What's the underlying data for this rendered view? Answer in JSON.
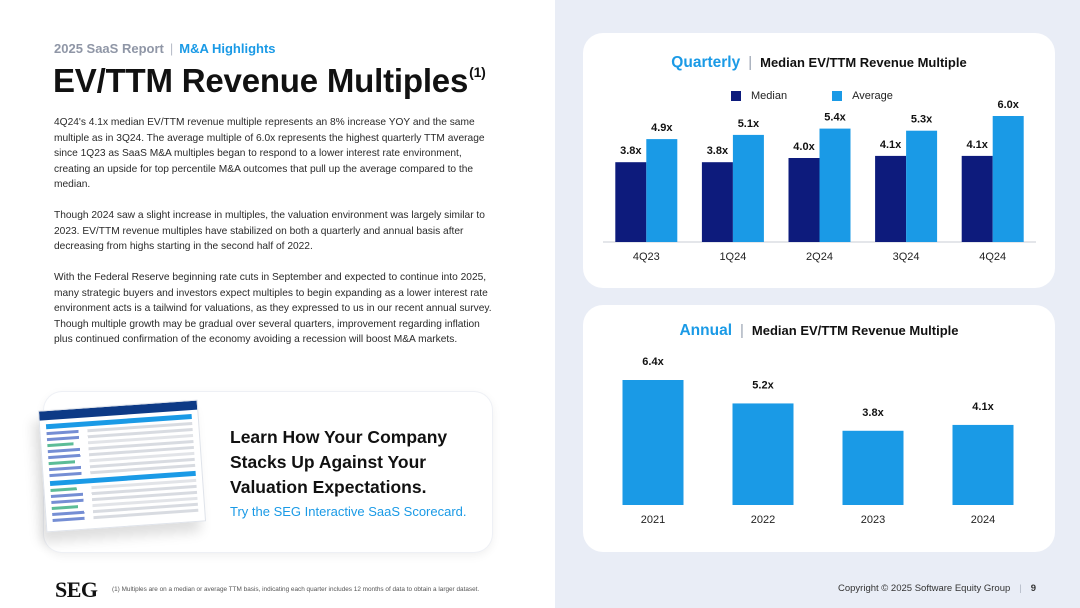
{
  "header": {
    "report": "2025 SaaS Report",
    "section": "M&A Highlights",
    "title": "EV/TTM Revenue Multiples",
    "title_note": "(1)"
  },
  "body": {
    "paragraphs": [
      "4Q24's 4.1x median EV/TTM revenue multiple represents an 8% increase YOY and the same multiple as in 3Q24. The average multiple of 6.0x represents the highest quarterly TTM average since 1Q23 as SaaS M&A multiples began to respond to a lower interest rate environment, creating an upside for top percentile M&A outcomes that pull up the average compared to the median.",
      "Though 2024 saw a slight increase in multiples, the valuation environment was largely similar to 2023. EV/TTM revenue multiples have stabilized on both a quarterly and annual basis after decreasing from highs starting in the second half of 2022.",
      "With the Federal Reserve beginning rate cuts in September and expected to continue into 2025, many strategic buyers and investors expect multiples to begin expanding as a lower interest rate environment acts is a tailwind for valuations, as they expressed to us in our recent annual survey. Though multiple growth may be gradual over several quarters, improvement regarding inflation plus continued confirmation of the economy avoiding a recession will boost M&A markets."
    ]
  },
  "cta": {
    "heading": "Learn How Your Company Stacks Up Against Your Valuation Expectations.",
    "link": "Try the SEG Interactive SaaS Scorecard."
  },
  "footer": {
    "logo": "SEG",
    "footnote": "(1) Multiples are on a median or average TTM basis, indicating each quarter includes 12 months of data to obtain a larger dataset.",
    "copyright": "Copyright © 2025 Software Equity Group",
    "page": "9"
  },
  "colors": {
    "median": "#0d1b7c",
    "average": "#1a9ae6",
    "annual": "#1a9ae6",
    "accent": "#1a9ae6"
  },
  "chart_data": [
    {
      "type": "bar",
      "title_prefix": "Quarterly",
      "title": "Median EV/TTM Revenue Multiple",
      "categories": [
        "4Q23",
        "1Q24",
        "2Q24",
        "3Q24",
        "4Q24"
      ],
      "series": [
        {
          "name": "Median",
          "values": [
            3.8,
            3.8,
            4.0,
            4.1,
            4.1
          ],
          "labels": [
            "3.8x",
            "3.8x",
            "4.0x",
            "4.1x",
            "4.1x"
          ]
        },
        {
          "name": "Average",
          "values": [
            4.9,
            5.1,
            5.4,
            5.3,
            6.0
          ],
          "labels": [
            "4.9x",
            "5.1x",
            "5.4x",
            "5.3x",
            "6.0x"
          ]
        }
      ],
      "ylim": [
        0,
        6.0
      ],
      "grid": false,
      "legend": "top"
    },
    {
      "type": "bar",
      "title_prefix": "Annual",
      "title": "Median EV/TTM Revenue Multiple",
      "categories": [
        "2021",
        "2022",
        "2023",
        "2024"
      ],
      "series": [
        {
          "values": [
            6.4,
            5.2,
            3.8,
            4.1
          ],
          "labels": [
            "6.4x",
            "5.2x",
            "3.8x",
            "4.1x"
          ]
        }
      ],
      "ylim": [
        0,
        6.4
      ],
      "grid": false
    }
  ]
}
